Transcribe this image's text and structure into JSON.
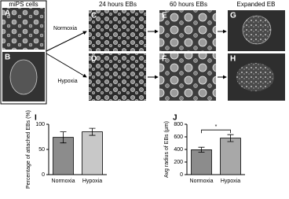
{
  "panels": {
    "column_titles": [
      "miPS cells",
      "24 hours EBs",
      "60 hours EBs",
      "Expanded EB"
    ],
    "letters": [
      "A",
      "B",
      "C",
      "D",
      "E",
      "F",
      "G",
      "H"
    ],
    "arrow_labels": [
      "Normoxia",
      "Hypoxia"
    ]
  },
  "chart_data": [
    {
      "type": "bar",
      "letter": "I",
      "ylabel": "Percentage of attached EBs (%)",
      "categories": [
        "Normoxia",
        "Hypoxia"
      ],
      "values": [
        74,
        85
      ],
      "errors": [
        11,
        7
      ],
      "colors": [
        "#8c8c8c",
        "#c8c8c8"
      ],
      "ylim": [
        0,
        100
      ],
      "yticks": [
        0,
        50,
        100
      ]
    },
    {
      "type": "bar",
      "letter": "J",
      "ylabel": "Avg radius of EBs (μm)",
      "categories": [
        "Normoxia",
        "Hypoxia"
      ],
      "values": [
        395,
        580
      ],
      "errors": [
        40,
        55
      ],
      "colors": [
        "#8c8c8c",
        "#a8a8a8"
      ],
      "ylim": [
        0,
        800
      ],
      "yticks": [
        0,
        200,
        400,
        600,
        800
      ],
      "annotation": "*"
    }
  ]
}
